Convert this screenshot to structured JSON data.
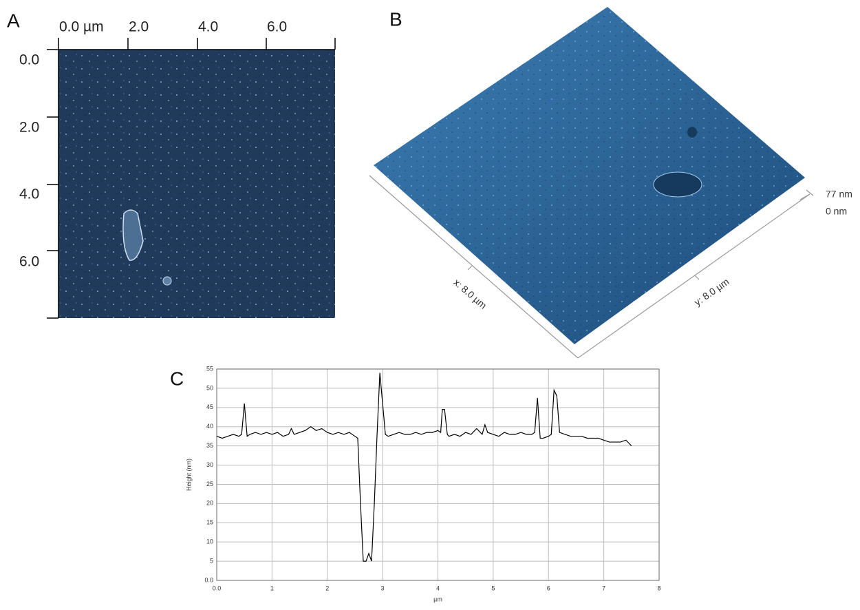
{
  "panel_a": {
    "label": "A",
    "x_tick_labels": [
      "0.0 µm",
      "2.0",
      "4.0",
      "6.0"
    ],
    "y_tick_labels": [
      "0.0",
      "2.0",
      "4.0",
      "6.0"
    ]
  },
  "panel_b": {
    "label": "B",
    "z_max_label": "77 nm",
    "z_min_label": "0 nm",
    "x_axis_label": "x: 8.0 µm",
    "y_axis_label": "y: 8.0 µm"
  },
  "panel_c": {
    "label": "C"
  },
  "chart_data": {
    "type": "line",
    "xlabel": "µm",
    "ylabel": "Height (nm)",
    "grid": true,
    "xlim": [
      0,
      8
    ],
    "ylim": [
      0,
      55
    ],
    "xticks": [
      {
        "value": 0,
        "label": "0.0"
      },
      {
        "value": 1,
        "label": "1"
      },
      {
        "value": 2,
        "label": "2"
      },
      {
        "value": 3,
        "label": "3"
      },
      {
        "value": 4,
        "label": "4"
      },
      {
        "value": 5,
        "label": "5"
      },
      {
        "value": 6,
        "label": "6"
      },
      {
        "value": 7,
        "label": "7"
      },
      {
        "value": 8,
        "label": "8"
      }
    ],
    "yticks": [
      {
        "value": 0,
        "label": "0.0"
      },
      5,
      10,
      15,
      20,
      25,
      30,
      35,
      40,
      45,
      50,
      55
    ],
    "series": [
      {
        "color": "#000000",
        "x": [
          0.0,
          0.1,
          0.2,
          0.3,
          0.4,
          0.45,
          0.5,
          0.55,
          0.6,
          0.7,
          0.8,
          0.9,
          1.0,
          1.1,
          1.2,
          1.3,
          1.35,
          1.4,
          1.5,
          1.6,
          1.7,
          1.8,
          1.9,
          2.0,
          2.1,
          2.2,
          2.3,
          2.4,
          2.5,
          2.55,
          2.6,
          2.65,
          2.7,
          2.75,
          2.8,
          2.85,
          2.9,
          2.95,
          3.0,
          3.05,
          3.1,
          3.2,
          3.3,
          3.4,
          3.5,
          3.6,
          3.7,
          3.8,
          3.9,
          4.0,
          4.05,
          4.08,
          4.12,
          4.17,
          4.2,
          4.3,
          4.4,
          4.5,
          4.6,
          4.7,
          4.8,
          4.85,
          4.9,
          5.0,
          5.1,
          5.2,
          5.3,
          5.4,
          5.5,
          5.6,
          5.7,
          5.75,
          5.8,
          5.85,
          5.9,
          6.0,
          6.05,
          6.1,
          6.15,
          6.2,
          6.3,
          6.4,
          6.5,
          6.6,
          6.7,
          6.8,
          6.9,
          7.0,
          7.1,
          7.2,
          7.3,
          7.4,
          7.5
        ],
        "values": [
          37.5,
          37,
          37.5,
          38,
          37.5,
          38,
          46,
          37.5,
          38,
          38.5,
          38,
          38.5,
          38,
          38.5,
          37.5,
          38,
          39.5,
          38,
          38.5,
          39,
          40,
          39,
          39.5,
          38.5,
          38,
          38.5,
          38,
          38.5,
          37.5,
          37,
          20,
          5,
          5,
          7,
          5,
          20,
          38,
          54,
          46,
          38,
          37.5,
          38,
          38.5,
          38,
          38,
          38.5,
          38,
          38.5,
          38.5,
          39,
          38.5,
          44.5,
          44.5,
          38,
          37.5,
          38,
          37.5,
          38.5,
          38,
          39.5,
          38,
          40.5,
          38.5,
          38,
          37.5,
          38.5,
          38,
          38,
          38.5,
          38,
          38,
          38.5,
          47.5,
          37,
          37,
          37.5,
          38,
          49.5,
          48,
          38.5,
          38,
          37.5,
          37.5,
          37.5,
          37,
          37,
          37,
          36.5,
          36,
          36,
          36,
          36.5,
          35
        ]
      }
    ]
  }
}
